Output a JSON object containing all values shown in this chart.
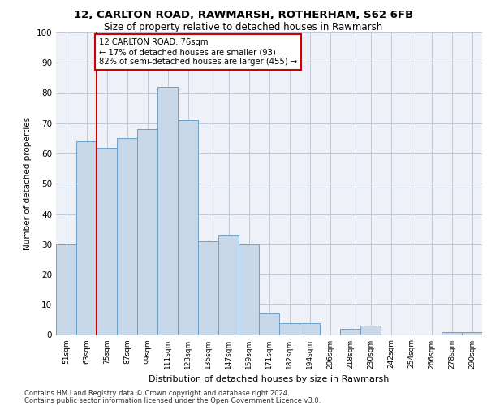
{
  "title1": "12, CARLTON ROAD, RAWMARSH, ROTHERHAM, S62 6FB",
  "title2": "Size of property relative to detached houses in Rawmarsh",
  "xlabel": "Distribution of detached houses by size in Rawmarsh",
  "ylabel": "Number of detached properties",
  "bar_labels": [
    "51sqm",
    "63sqm",
    "75sqm",
    "87sqm",
    "99sqm",
    "111sqm",
    "123sqm",
    "135sqm",
    "147sqm",
    "159sqm",
    "171sqm",
    "182sqm",
    "194sqm",
    "206sqm",
    "218sqm",
    "230sqm",
    "242sqm",
    "254sqm",
    "266sqm",
    "278sqm",
    "290sqm"
  ],
  "bar_values": [
    30,
    64,
    62,
    65,
    68,
    82,
    71,
    31,
    33,
    30,
    7,
    4,
    4,
    0,
    2,
    3,
    0,
    0,
    0,
    1,
    1
  ],
  "bar_color": "#c8d8e8",
  "bar_edge_color": "#6aa0c8",
  "vline_x_index": 2,
  "vline_color": "#cc0000",
  "annotation_text": "12 CARLTON ROAD: 76sqm\n← 17% of detached houses are smaller (93)\n82% of semi-detached houses are larger (455) →",
  "annotation_box_color": "#ffffff",
  "annotation_box_edge": "#cc0000",
  "ylim": [
    0,
    100
  ],
  "yticks": [
    0,
    10,
    20,
    30,
    40,
    50,
    60,
    70,
    80,
    90,
    100
  ],
  "grid_color": "#c0c8d8",
  "background_color": "#eef2f8",
  "footer1": "Contains HM Land Registry data © Crown copyright and database right 2024.",
  "footer2": "Contains public sector information licensed under the Open Government Licence v3.0."
}
